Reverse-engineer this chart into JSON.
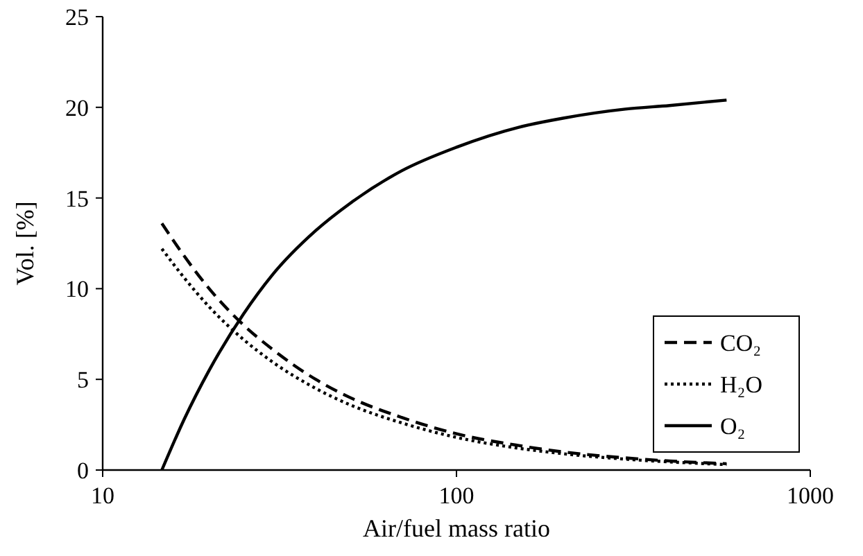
{
  "chart_data": {
    "type": "line",
    "xlabel": "Air/fuel mass ratio",
    "ylabel": "Vol. [%]",
    "log": "x",
    "xlim": [
      10,
      1000
    ],
    "xticks": [
      10,
      100,
      1000
    ],
    "ylim": [
      0,
      25
    ],
    "yticks": [
      0,
      5,
      10,
      15,
      20,
      25
    ],
    "grid": false,
    "legend": "right",
    "marker": "none",
    "x": [
      14.7,
      17,
      20,
      25,
      30,
      40,
      50,
      70,
      100,
      150,
      200,
      300,
      400,
      580
    ],
    "series": [
      {
        "name": "CO₂",
        "color": "#000000",
        "line_style": "dashed",
        "values": [
          13.6,
          11.8,
          10.0,
          8.0,
          6.7,
          5.0,
          4.0,
          2.9,
          2.0,
          1.35,
          1.0,
          0.67,
          0.5,
          0.35
        ]
      },
      {
        "name": "H₂O",
        "color": "#000000",
        "line_style": "dotted",
        "values": [
          12.2,
          10.6,
          9.0,
          7.2,
          6.0,
          4.5,
          3.6,
          2.6,
          1.8,
          1.2,
          0.9,
          0.6,
          0.45,
          0.3
        ]
      },
      {
        "name": "O₂",
        "color": "#000000",
        "line_style": "solid",
        "values": [
          0,
          2.8,
          5.5,
          8.6,
          10.7,
          13.2,
          14.7,
          16.5,
          17.8,
          18.9,
          19.4,
          19.9,
          20.1,
          20.4
        ]
      }
    ]
  }
}
